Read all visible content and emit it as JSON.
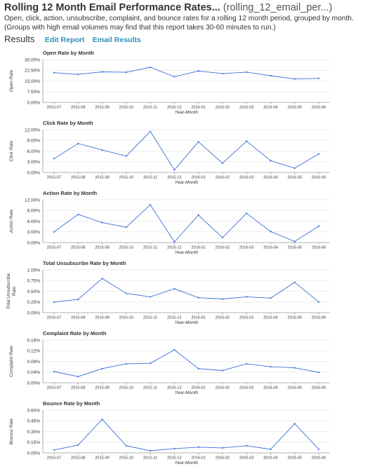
{
  "header": {
    "title": "Rolling 12 Month Email Performance Rates...",
    "report_id": "(rolling_12_email_per...)",
    "description": "Open, click, action, unsubscribe, complaint, and bounce rates for a rolling 12 month period, grouped by month. (Groups with high email volumes may find that this report takes 30-60 minutes to run.)"
  },
  "toolbar": {
    "results_label": "Results",
    "edit_report": "Edit Report",
    "email_results": "Email Results"
  },
  "colors": {
    "line": "#3b6fd6",
    "grid": "#e6e6e6",
    "axis": "#999999",
    "text": "#333333"
  },
  "chart_data": [
    {
      "type": "line",
      "title": "Open Rate by Month",
      "xlabel": "Year-Month",
      "ylabel": "Open Rate",
      "categories": [
        "2015-07",
        "2015-08",
        "2015-09",
        "2015-10",
        "2015-11",
        "2015-12",
        "2016-01",
        "2016-02",
        "2016-03",
        "2016-04",
        "2016-05",
        "2016-06"
      ],
      "values": [
        20.8,
        19.6,
        21.4,
        21.1,
        24.6,
        18.0,
        22.0,
        20.2,
        21.2,
        18.7,
        16.4,
        16.8
      ],
      "ylim": [
        0,
        30
      ],
      "yticks": [
        "0.00%",
        "7.50%",
        "15.00%",
        "22.50%",
        "30.00%"
      ],
      "grid": true
    },
    {
      "type": "line",
      "title": "Click Rate by Month",
      "xlabel": "Year-Month",
      "ylabel": "Click Rate",
      "categories": [
        "2015-07",
        "2015-08",
        "2015-09",
        "2015-10",
        "2015-11",
        "2015-12",
        "2016-01",
        "2016-02",
        "2016-03",
        "2016-04",
        "2016-05",
        "2016-06"
      ],
      "values": [
        3.9,
        8.1,
        6.3,
        4.6,
        11.5,
        0.7,
        8.6,
        2.6,
        8.8,
        3.3,
        1.2,
        5.2
      ],
      "ylim": [
        0,
        12
      ],
      "yticks": [
        "0.00%",
        "3.00%",
        "6.00%",
        "9.00%",
        "12.00%"
      ],
      "grid": true
    },
    {
      "type": "line",
      "title": "Action Rate by Month",
      "xlabel": "Year-Month",
      "ylabel": "Action Rate",
      "categories": [
        "2015-07",
        "2015-08",
        "2015-09",
        "2015-10",
        "2015-11",
        "2015-12",
        "2016-01",
        "2016-02",
        "2016-03",
        "2016-04",
        "2016-05",
        "2016-06"
      ],
      "values": [
        3.0,
        7.9,
        5.6,
        4.3,
        10.6,
        0.2,
        7.7,
        1.4,
        8.2,
        3.1,
        0.3,
        4.6
      ],
      "ylim": [
        0,
        12
      ],
      "yticks": [
        "0.00%",
        "3.00%",
        "6.00%",
        "9.00%",
        "12.00%"
      ],
      "grid": true
    },
    {
      "type": "line",
      "title": "Total Unsubscribe Rate by Month",
      "xlabel": "Year-Month",
      "ylabel": "Total Unsubscribe Rate",
      "categories": [
        "2015-07",
        "2015-08",
        "2015-09",
        "2015-10",
        "2015-11",
        "2015-12",
        "2016-01",
        "2016-02",
        "2016-03",
        "2016-04",
        "2016-05",
        "2016-06"
      ],
      "values": [
        0.25,
        0.31,
        0.8,
        0.45,
        0.37,
        0.56,
        0.35,
        0.32,
        0.37,
        0.34,
        0.71,
        0.25
      ],
      "ylim": [
        0,
        1
      ],
      "yticks": [
        "0.00%",
        "0.25%",
        "0.50%",
        "0.75%",
        "1.00%"
      ],
      "grid": true
    },
    {
      "type": "line",
      "title": "Complaint Rate by Month",
      "xlabel": "Year-Month",
      "ylabel": "Complaint Rate",
      "categories": [
        "2015-07",
        "2015-08",
        "2015-09",
        "2015-10",
        "2015-11",
        "2015-12",
        "2016-01",
        "2016-02",
        "2016-03",
        "2016-04",
        "2016-05",
        "2016-06"
      ],
      "values": [
        0.042,
        0.023,
        0.053,
        0.071,
        0.073,
        0.123,
        0.053,
        0.046,
        0.071,
        0.06,
        0.056,
        0.039
      ],
      "ylim": [
        0,
        0.16
      ],
      "yticks": [
        "0.00%",
        "0.04%",
        "0.08%",
        "0.12%",
        "0.16%"
      ],
      "grid": true
    },
    {
      "type": "line",
      "title": "Bounce Rate by Month",
      "xlabel": "Year-Month",
      "ylabel": "Bounce Rate",
      "categories": [
        "2015-07",
        "2015-08",
        "2015-09",
        "2015-10",
        "2015-11",
        "2015-12",
        "2016-01",
        "2016-02",
        "2016-03",
        "2016-04",
        "2016-05",
        "2016-06"
      ],
      "values": [
        0.04,
        0.11,
        0.47,
        0.1,
        0.03,
        0.06,
        0.08,
        0.07,
        0.1,
        0.05,
        0.41,
        0.05
      ],
      "ylim": [
        0,
        0.6
      ],
      "yticks": [
        "0.00%",
        "0.15%",
        "0.30%",
        "0.45%",
        "0.60%"
      ],
      "grid": true
    }
  ]
}
